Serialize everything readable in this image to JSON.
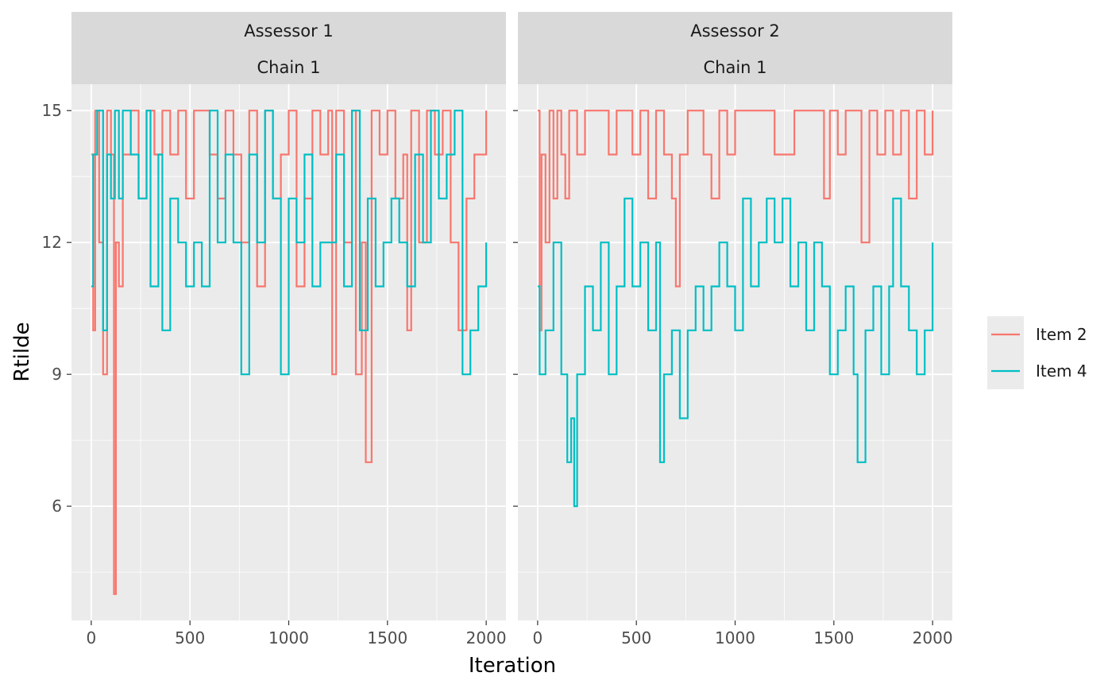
{
  "chart_data": {
    "type": "line",
    "xlabel": "Iteration",
    "ylabel": "Rtilde",
    "xlim": [
      -100,
      2100
    ],
    "ylim": [
      3.4,
      15.6
    ],
    "x_ticks": [
      0,
      500,
      1000,
      1500,
      2000
    ],
    "x_tick_labels": [
      "0",
      "500",
      "1000",
      "1500",
      "2000"
    ],
    "y_ticks": [
      6,
      9,
      12,
      15
    ],
    "y_tick_labels": [
      "6",
      "9",
      "12",
      "15"
    ],
    "grid": true,
    "legend_position": "right",
    "series_colors": {
      "Item 2": "#F8766D",
      "Item 4": "#00BFC4"
    },
    "panels": [
      {
        "strip": [
          "Assessor 1",
          "Chain 1"
        ],
        "series": [
          {
            "name": "Item 2",
            "x": [
              0,
              10,
              20,
              40,
              60,
              80,
              100,
              115,
              125,
              140,
              160,
              200,
              240,
              280,
              320,
              360,
              400,
              440,
              480,
              520,
              560,
              600,
              640,
              680,
              720,
              760,
              800,
              840,
              880,
              920,
              960,
              1000,
              1040,
              1080,
              1120,
              1160,
              1200,
              1220,
              1240,
              1280,
              1320,
              1340,
              1370,
              1390,
              1420,
              1460,
              1500,
              1540,
              1580,
              1600,
              1620,
              1660,
              1700,
              1740,
              1780,
              1820,
              1860,
              1900,
              1940,
              1980,
              2000
            ],
            "values": [
              14,
              10,
              15,
              12,
              9,
              15,
              14,
              4,
              12,
              11,
              14,
              15,
              13,
              15,
              14,
              15,
              14,
              15,
              13,
              15,
              15,
              14,
              13,
              15,
              14,
              12,
              15,
              11,
              15,
              13,
              14,
              15,
              11,
              13,
              15,
              14,
              15,
              9,
              15,
              12,
              15,
              9,
              12,
              7,
              15,
              14,
              15,
              13,
              14,
              10,
              15,
              12,
              15,
              14,
              15,
              12,
              10,
              13,
              14,
              14,
              15
            ]
          },
          {
            "name": "Item 4",
            "x": [
              0,
              10,
              30,
              60,
              80,
              100,
              120,
              140,
              160,
              200,
              240,
              280,
              300,
              340,
              360,
              400,
              440,
              480,
              520,
              560,
              600,
              640,
              680,
              720,
              760,
              800,
              840,
              880,
              920,
              960,
              1000,
              1040,
              1080,
              1120,
              1160,
              1200,
              1240,
              1280,
              1320,
              1360,
              1400,
              1440,
              1480,
              1520,
              1560,
              1600,
              1640,
              1680,
              1720,
              1760,
              1800,
              1840,
              1880,
              1920,
              1960,
              2000
            ],
            "values": [
              11,
              14,
              15,
              10,
              14,
              13,
              15,
              13,
              15,
              14,
              13,
              15,
              11,
              14,
              10,
              13,
              12,
              11,
              12,
              11,
              15,
              12,
              14,
              12,
              9,
              14,
              12,
              15,
              13,
              9,
              13,
              12,
              14,
              11,
              12,
              12,
              14,
              11,
              15,
              10,
              13,
              11,
              12,
              13,
              12,
              11,
              14,
              12,
              15,
              13,
              14,
              15,
              9,
              10,
              11,
              12
            ]
          }
        ]
      },
      {
        "strip": [
          "Assessor 2",
          "Chain 1"
        ],
        "series": [
          {
            "name": "Item 2",
            "x": [
              0,
              10,
              20,
              40,
              60,
              80,
              100,
              120,
              140,
              160,
              200,
              240,
              280,
              320,
              360,
              400,
              440,
              480,
              520,
              560,
              600,
              640,
              680,
              700,
              720,
              760,
              800,
              840,
              880,
              920,
              960,
              1000,
              1100,
              1200,
              1300,
              1400,
              1450,
              1480,
              1520,
              1560,
              1600,
              1640,
              1680,
              1720,
              1760,
              1800,
              1840,
              1880,
              1920,
              1960,
              2000
            ],
            "values": [
              15,
              10,
              14,
              12,
              15,
              13,
              15,
              14,
              13,
              15,
              14,
              15,
              15,
              15,
              14,
              15,
              15,
              14,
              15,
              13,
              15,
              14,
              13,
              11,
              14,
              15,
              15,
              14,
              13,
              15,
              14,
              15,
              15,
              14,
              15,
              15,
              13,
              15,
              14,
              15,
              15,
              12,
              15,
              14,
              15,
              14,
              15,
              13,
              15,
              14,
              15
            ]
          },
          {
            "name": "Item 4",
            "x": [
              0,
              10,
              40,
              80,
              120,
              150,
              170,
              185,
              200,
              240,
              280,
              320,
              360,
              400,
              440,
              480,
              520,
              560,
              600,
              620,
              640,
              680,
              720,
              760,
              800,
              840,
              880,
              920,
              960,
              1000,
              1040,
              1080,
              1120,
              1160,
              1200,
              1240,
              1280,
              1320,
              1360,
              1400,
              1440,
              1480,
              1520,
              1560,
              1600,
              1620,
              1660,
              1700,
              1740,
              1780,
              1800,
              1840,
              1880,
              1920,
              1960,
              2000
            ],
            "values": [
              11,
              9,
              10,
              12,
              9,
              7,
              8,
              6,
              9,
              11,
              10,
              12,
              9,
              11,
              13,
              11,
              12,
              10,
              12,
              7,
              9,
              10,
              8,
              10,
              11,
              10,
              11,
              12,
              11,
              10,
              13,
              11,
              12,
              13,
              12,
              13,
              11,
              12,
              10,
              12,
              11,
              9,
              10,
              11,
              9,
              7,
              10,
              11,
              9,
              11,
              13,
              11,
              10,
              9,
              10,
              12
            ]
          }
        ]
      }
    ]
  }
}
